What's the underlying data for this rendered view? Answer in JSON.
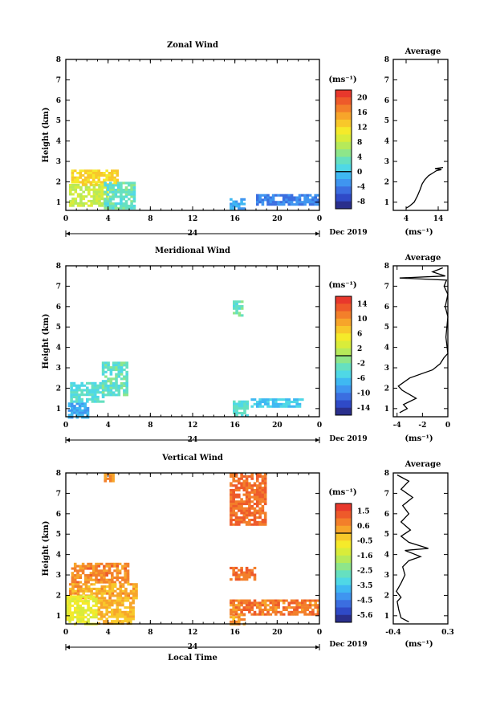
{
  "chart_data": [
    {
      "type": "heatmap",
      "title": "Zonal Wind",
      "ylabel": "Height (km)",
      "xticks": [
        "0",
        "4",
        "8",
        "12",
        "16",
        "20",
        "0"
      ],
      "yticks": [
        "1",
        "2",
        "3",
        "4",
        "5",
        "6",
        "7",
        "8"
      ],
      "xlim": [
        0,
        24
      ],
      "ylim": [
        0.6,
        8.0
      ],
      "date_label": "Dec 2019",
      "day_label": "24",
      "colorbar": {
        "unit": "(ms⁻¹)",
        "ticks": [
          "20",
          "16",
          "12",
          "8",
          "4",
          "0",
          "-4",
          "-8"
        ],
        "min": -10,
        "max": 22
      },
      "regions": [
        {
          "x0": 0.3,
          "x1": 4.0,
          "y0": 0.8,
          "y1": 1.9,
          "value": 8
        },
        {
          "x0": 0.5,
          "x1": 4.8,
          "y0": 1.9,
          "y1": 2.6,
          "value": 12
        },
        {
          "x0": 3.6,
          "x1": 6.5,
          "y0": 0.7,
          "y1": 2.0,
          "value": 3
        },
        {
          "x0": 15.5,
          "x1": 16.8,
          "y0": 0.7,
          "y1": 1.2,
          "value": -2
        },
        {
          "x0": 18.0,
          "x1": 24.0,
          "y0": 0.9,
          "y1": 1.4,
          "value": -4
        }
      ],
      "average": {
        "title": "Average",
        "xlabel": "(ms⁻¹)",
        "xticks": [
          "4",
          "14"
        ],
        "xlim": [
          0,
          17
        ],
        "points": [
          [
            3.9,
            0.7
          ],
          [
            5,
            0.8
          ],
          [
            6.5,
            1.0
          ],
          [
            7.5,
            1.3
          ],
          [
            8.3,
            1.6
          ],
          [
            9,
            1.9
          ],
          [
            9.8,
            2.1
          ],
          [
            11,
            2.3
          ],
          [
            12.5,
            2.45
          ],
          [
            13.5,
            2.55
          ],
          [
            15,
            2.6
          ],
          [
            13,
            2.65
          ],
          [
            15.5,
            2.7
          ]
        ]
      }
    },
    {
      "type": "heatmap",
      "title": "Meridional Wind",
      "ylabel": "Height (km)",
      "xticks": [
        "0",
        "4",
        "8",
        "12",
        "16",
        "20",
        "0"
      ],
      "yticks": [
        "1",
        "2",
        "3",
        "4",
        "5",
        "6",
        "7",
        "8"
      ],
      "xlim": [
        0,
        24
      ],
      "ylim": [
        0.6,
        8.0
      ],
      "date_label": "Dec 2019",
      "day_label": "24",
      "colorbar": {
        "unit": "(ms⁻¹)",
        "ticks": [
          "14",
          "10",
          "6",
          "2",
          "-2",
          "-6",
          "-10",
          "-14"
        ],
        "min": -16,
        "max": 16
      },
      "regions": [
        {
          "x0": 0.2,
          "x1": 2.0,
          "y0": 0.6,
          "y1": 1.3,
          "value": -8
        },
        {
          "x0": 0.4,
          "x1": 3.6,
          "y0": 1.3,
          "y1": 2.3,
          "value": -4
        },
        {
          "x0": 3.4,
          "x1": 5.8,
          "y0": 1.6,
          "y1": 3.3,
          "value": -3
        },
        {
          "x0": 15.8,
          "x1": 16.8,
          "y0": 5.6,
          "y1": 6.3,
          "value": -3
        },
        {
          "x0": 15.8,
          "x1": 17.2,
          "y0": 0.6,
          "y1": 1.4,
          "value": -4
        },
        {
          "x0": 17.5,
          "x1": 22.5,
          "y0": 1.1,
          "y1": 1.5,
          "value": -6
        }
      ],
      "average": {
        "title": "Average",
        "xlabel": "(ms⁻¹)",
        "xticks": [
          "-4",
          "-2",
          "0"
        ],
        "xlim": [
          -4.3,
          0
        ],
        "points": [
          [
            -3.8,
            0.8
          ],
          [
            -3.2,
            1.0
          ],
          [
            -3.5,
            1.2
          ],
          [
            -2.5,
            1.5
          ],
          [
            -3.6,
            1.9
          ],
          [
            -3.9,
            2.1
          ],
          [
            -3.0,
            2.5
          ],
          [
            -1.2,
            2.9
          ],
          [
            -0.6,
            3.2
          ],
          [
            -0.3,
            3.5
          ],
          [
            0,
            3.7
          ],
          [
            -0.15,
            4.5
          ],
          [
            0,
            5.5
          ],
          [
            -0.2,
            6.0
          ],
          [
            0,
            6.6
          ],
          [
            -0.3,
            7.0
          ],
          [
            -0.1,
            7.3
          ],
          [
            -3.8,
            7.4
          ],
          [
            -0.2,
            7.5
          ],
          [
            -1.2,
            7.7
          ],
          [
            -0.4,
            7.9
          ]
        ]
      }
    },
    {
      "type": "heatmap",
      "title": "Vertical Wind",
      "ylabel": "Height (km)",
      "xlabel": "Local Time",
      "xticks": [
        "0",
        "4",
        "8",
        "12",
        "16",
        "20",
        "0"
      ],
      "yticks": [
        "1",
        "2",
        "3",
        "4",
        "5",
        "6",
        "7",
        "8"
      ],
      "xlim": [
        0,
        24
      ],
      "ylim": [
        0.6,
        8.0
      ],
      "date_label": "Dec 2019",
      "day_label": "24",
      "colorbar": {
        "unit": "(ms⁻¹)",
        "ticks": [
          "1.5",
          "0.6",
          "-0.5",
          "-1.6",
          "-2.5",
          "-3.5",
          "-4.5",
          "-5.6"
        ],
        "min": -6.0,
        "max": 2.0
      },
      "regions": [
        {
          "x0": 3.6,
          "x1": 4.4,
          "y0": 7.6,
          "y1": 8.0,
          "value": 0.5
        },
        {
          "x0": 0.5,
          "x1": 5.8,
          "y0": 2.6,
          "y1": 3.6,
          "value": 0.6
        },
        {
          "x0": 0.3,
          "x1": 6.8,
          "y0": 1.8,
          "y1": 2.6,
          "value": 0.2
        },
        {
          "x0": 0.0,
          "x1": 3.0,
          "y0": 0.6,
          "y1": 2.0,
          "value": -1.0
        },
        {
          "x0": 3.0,
          "x1": 6.5,
          "y0": 0.6,
          "y1": 1.8,
          "value": 0.0
        },
        {
          "x0": 15.5,
          "x1": 19.0,
          "y0": 5.5,
          "y1": 8.0,
          "value": 1.0
        },
        {
          "x0": 15.5,
          "x1": 17.8,
          "y0": 2.8,
          "y1": 3.4,
          "value": 1.0
        },
        {
          "x0": 15.5,
          "x1": 24.0,
          "y0": 1.0,
          "y1": 1.8,
          "value": 0.8
        },
        {
          "x0": 15.5,
          "x1": 17.0,
          "y0": 0.6,
          "y1": 1.1,
          "value": 0.4
        }
      ],
      "average": {
        "title": "Average",
        "xlabel": "(ms⁻¹)",
        "xticks": [
          "-0.4",
          "0.3"
        ],
        "xlim": [
          -0.4,
          0.3
        ],
        "points": [
          [
            -0.2,
            0.7
          ],
          [
            -0.3,
            0.9
          ],
          [
            -0.33,
            1.3
          ],
          [
            -0.35,
            1.7
          ],
          [
            -0.3,
            1.9
          ],
          [
            -0.36,
            2.2
          ],
          [
            -0.3,
            2.6
          ],
          [
            -0.25,
            3.0
          ],
          [
            -0.28,
            3.4
          ],
          [
            -0.2,
            3.7
          ],
          [
            -0.05,
            3.9
          ],
          [
            -0.25,
            4.2
          ],
          [
            0.05,
            4.3
          ],
          [
            -0.2,
            4.6
          ],
          [
            -0.3,
            4.9
          ],
          [
            -0.18,
            5.2
          ],
          [
            -0.3,
            5.6
          ],
          [
            -0.2,
            6.0
          ],
          [
            -0.28,
            6.4
          ],
          [
            -0.15,
            6.8
          ],
          [
            -0.3,
            7.2
          ],
          [
            -0.2,
            7.6
          ],
          [
            -0.35,
            7.9
          ]
        ]
      }
    }
  ]
}
